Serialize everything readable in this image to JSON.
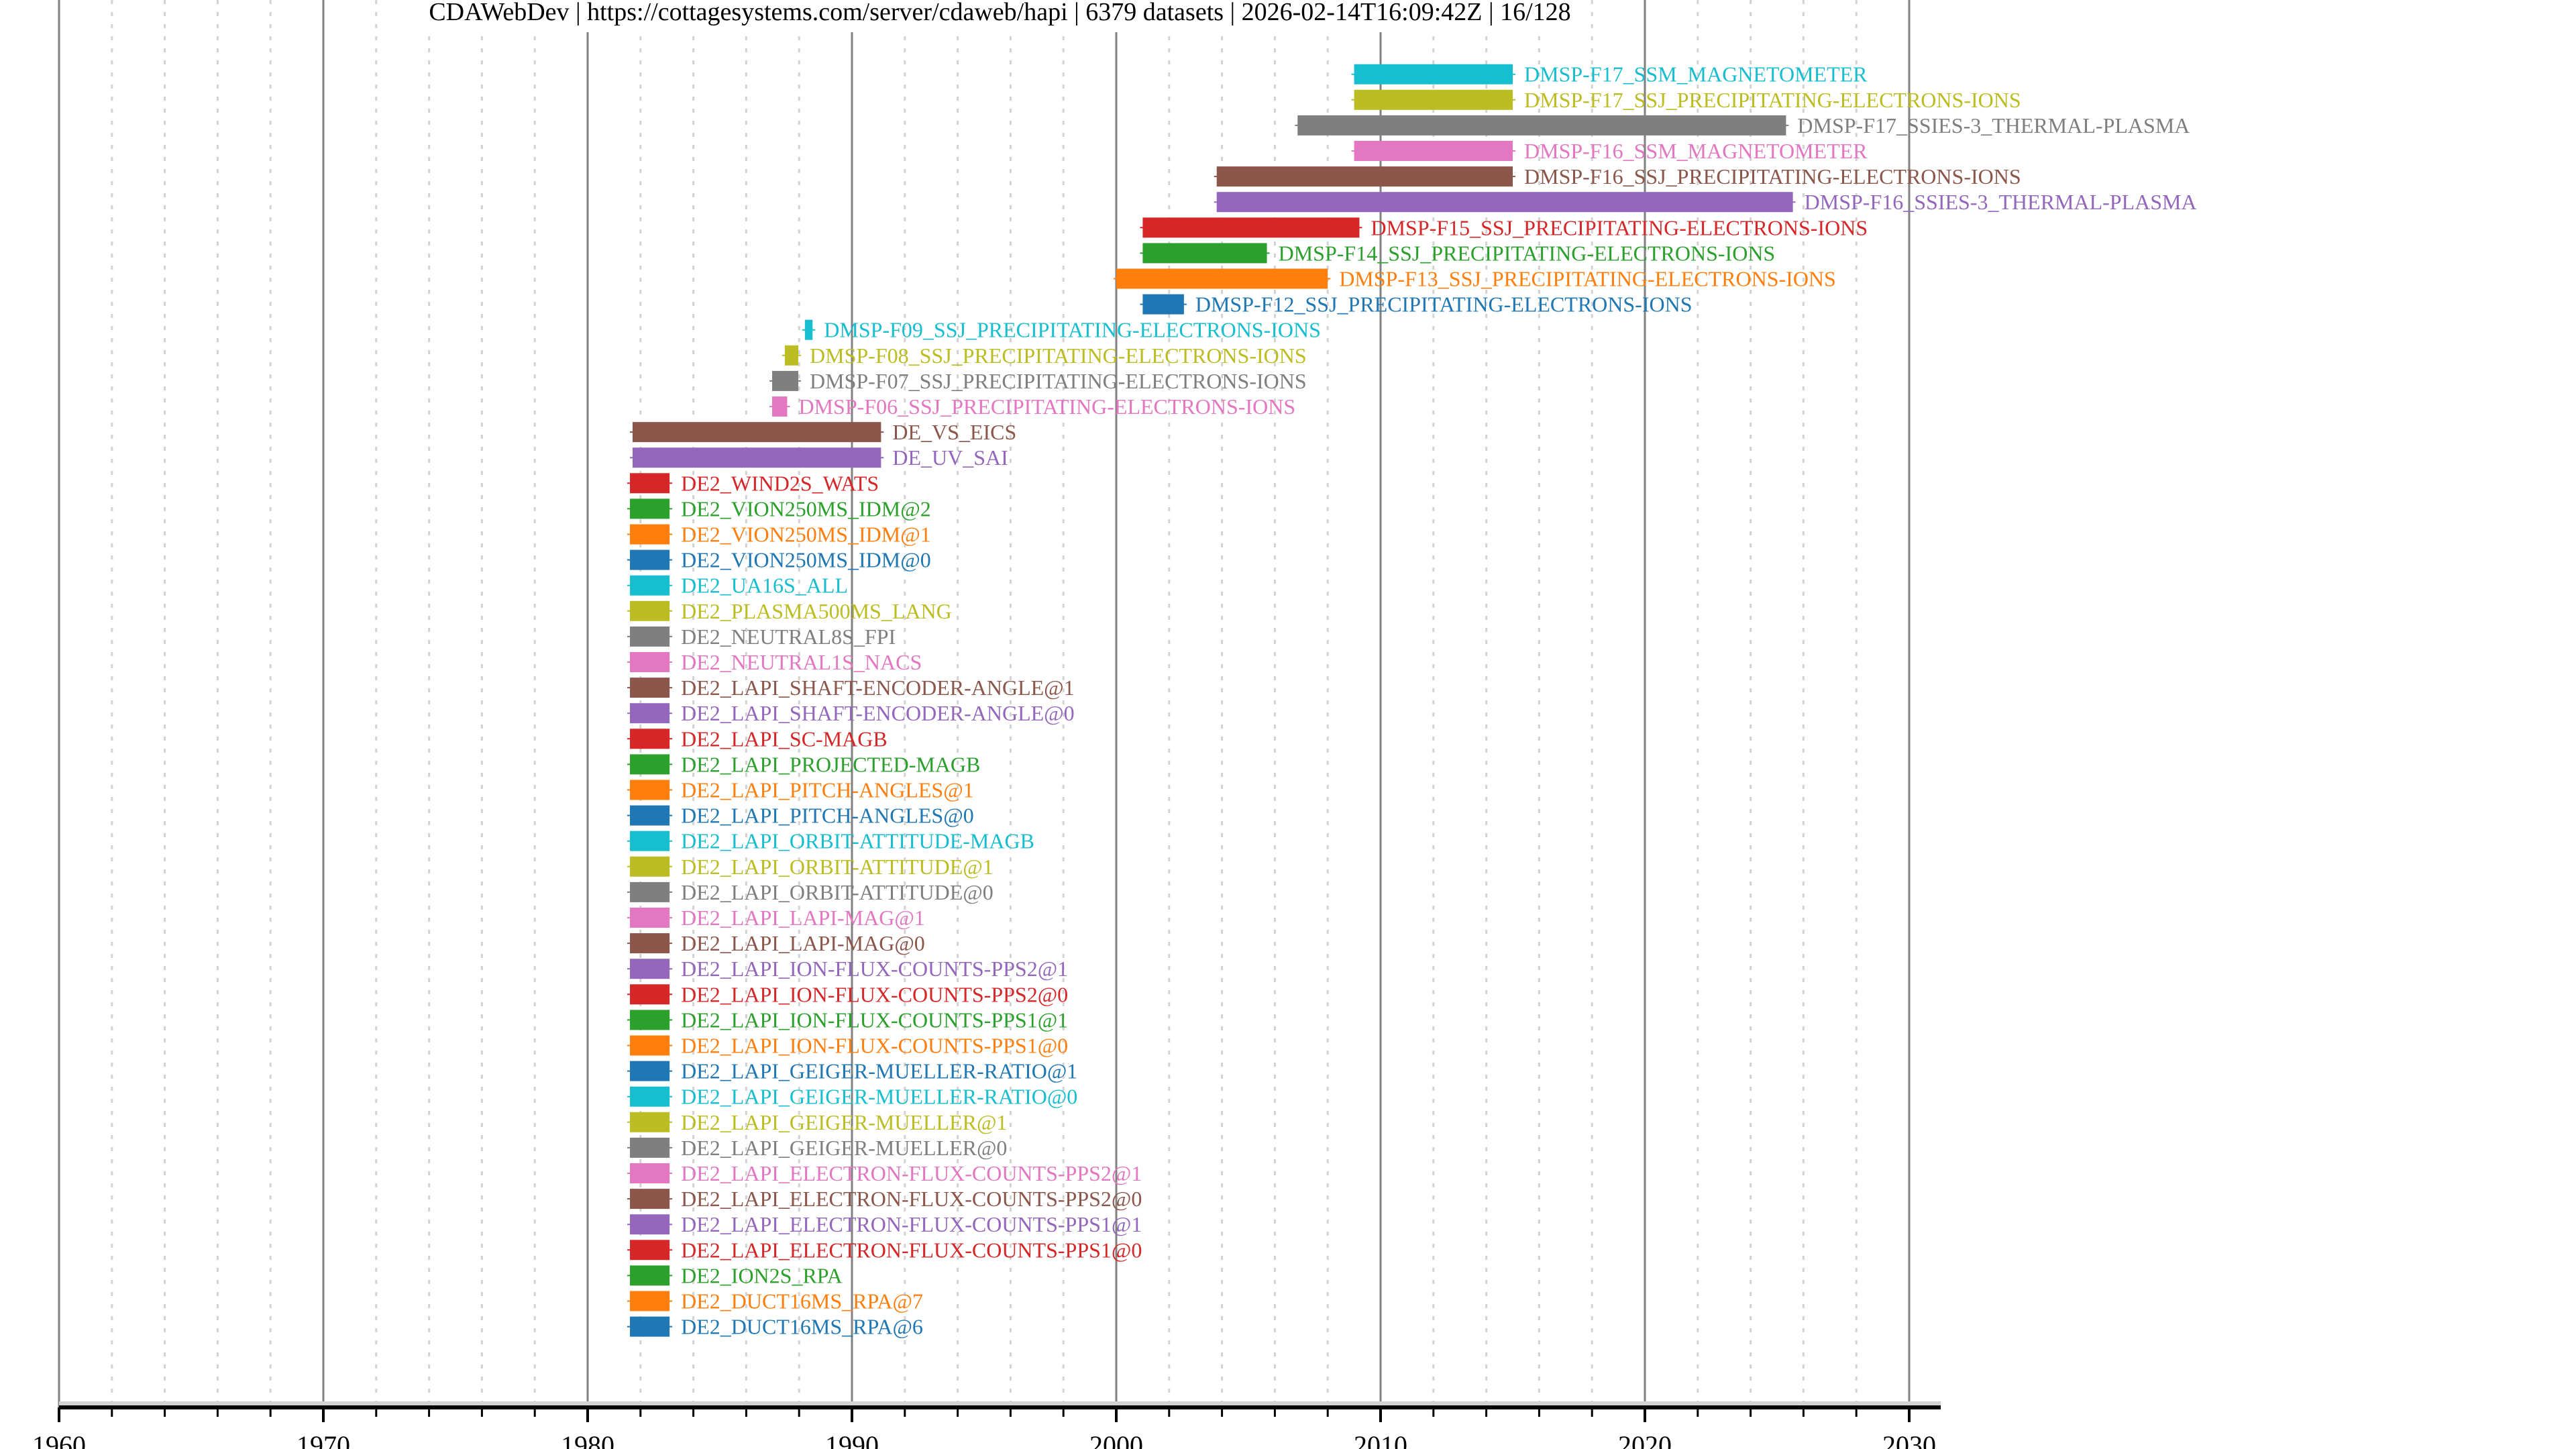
{
  "chart_data": {
    "type": "timeline",
    "title_parts": [
      "CDAWebDev",
      "https://cottagesystems.com/server/cdaweb/hapi",
      "6379 datasets",
      "2026-02-14T16:09:42Z",
      "16/128"
    ],
    "xlabel": "",
    "ylabel": "",
    "xlim": [
      1960,
      2031.2
    ],
    "x_ticks": [
      1960,
      1970,
      1980,
      1990,
      2000,
      2010,
      2020,
      2030
    ],
    "x_tick_labels": [
      "1960",
      "1970",
      "1980",
      "1990",
      "2000",
      "2010",
      "2020",
      "2030"
    ],
    "minor_tick_step_years": 2,
    "grid": true,
    "legend": "none",
    "palette": [
      "#1f77b4",
      "#ff7f0e",
      "#2ca02c",
      "#d62728",
      "#9467bd",
      "#8c564b",
      "#e377c2",
      "#7f7f7f",
      "#bcbd22",
      "#17becf"
    ],
    "series": [
      {
        "name": "DMSP-F17_SSM_MAGNETOMETER",
        "start": 2009.0,
        "end": 2015.0,
        "color": "#17becf"
      },
      {
        "name": "DMSP-F17_SSJ_PRECIPITATING-ELECTRONS-IONS",
        "start": 2009.0,
        "end": 2015.0,
        "color": "#bcbd22"
      },
      {
        "name": "DMSP-F17_SSIES-3_THERMAL-PLASMA",
        "start": 2006.86,
        "end": 2025.34,
        "color": "#7f7f7f"
      },
      {
        "name": "DMSP-F16_SSM_MAGNETOMETER",
        "start": 2009.0,
        "end": 2015.0,
        "color": "#e377c2"
      },
      {
        "name": "DMSP-F16_SSJ_PRECIPITATING-ELECTRONS-IONS",
        "start": 2003.8,
        "end": 2015.0,
        "color": "#8c564b"
      },
      {
        "name": "DMSP-F16_SSIES-3_THERMAL-PLASMA",
        "start": 2003.8,
        "end": 2025.6,
        "color": "#9467bd"
      },
      {
        "name": "DMSP-F15_SSJ_PRECIPITATING-ELECTRONS-IONS",
        "start": 2001.0,
        "end": 2009.2,
        "color": "#d62728"
      },
      {
        "name": "DMSP-F14_SSJ_PRECIPITATING-ELECTRONS-IONS",
        "start": 2001.0,
        "end": 2005.7,
        "color": "#2ca02c"
      },
      {
        "name": "DMSP-F13_SSJ_PRECIPITATING-ELECTRONS-IONS",
        "start": 2000.0,
        "end": 2008.0,
        "color": "#ff7f0e"
      },
      {
        "name": "DMSP-F12_SSJ_PRECIPITATING-ELECTRONS-IONS",
        "start": 2001.0,
        "end": 2002.56,
        "color": "#1f77b4"
      },
      {
        "name": "DMSP-F09_SSJ_PRECIPITATING-ELECTRONS-IONS",
        "start": 1988.22,
        "end": 1988.51,
        "color": "#17becf"
      },
      {
        "name": "DMSP-F08_SSJ_PRECIPITATING-ELECTRONS-IONS",
        "start": 1987.46,
        "end": 1987.97,
        "color": "#bcbd22"
      },
      {
        "name": "DMSP-F07_SSJ_PRECIPITATING-ELECTRONS-IONS",
        "start": 1986.98,
        "end": 1987.97,
        "color": "#7f7f7f"
      },
      {
        "name": "DMSP-F06_SSJ_PRECIPITATING-ELECTRONS-IONS",
        "start": 1986.98,
        "end": 1987.55,
        "color": "#e377c2"
      },
      {
        "name": "DE_VS_EICS",
        "start": 1981.7,
        "end": 1991.1,
        "color": "#8c564b"
      },
      {
        "name": "DE_UV_SAI",
        "start": 1981.7,
        "end": 1991.1,
        "color": "#9467bd"
      },
      {
        "name": "DE2_WIND2S_WATS",
        "start": 1981.6,
        "end": 1983.1,
        "color": "#d62728"
      },
      {
        "name": "DE2_VION250MS_IDM@2",
        "start": 1981.6,
        "end": 1983.1,
        "color": "#2ca02c"
      },
      {
        "name": "DE2_VION250MS_IDM@1",
        "start": 1981.6,
        "end": 1983.1,
        "color": "#ff7f0e"
      },
      {
        "name": "DE2_VION250MS_IDM@0",
        "start": 1981.6,
        "end": 1983.1,
        "color": "#1f77b4"
      },
      {
        "name": "DE2_UA16S_ALL",
        "start": 1981.6,
        "end": 1983.1,
        "color": "#17becf"
      },
      {
        "name": "DE2_PLASMA500MS_LANG",
        "start": 1981.6,
        "end": 1983.1,
        "color": "#bcbd22"
      },
      {
        "name": "DE2_NEUTRAL8S_FPI",
        "start": 1981.6,
        "end": 1983.1,
        "color": "#7f7f7f"
      },
      {
        "name": "DE2_NEUTRAL1S_NACS",
        "start": 1981.6,
        "end": 1983.1,
        "color": "#e377c2"
      },
      {
        "name": "DE2_LAPI_SHAFT-ENCODER-ANGLE@1",
        "start": 1981.6,
        "end": 1983.1,
        "color": "#8c564b"
      },
      {
        "name": "DE2_LAPI_SHAFT-ENCODER-ANGLE@0",
        "start": 1981.6,
        "end": 1983.1,
        "color": "#9467bd"
      },
      {
        "name": "DE2_LAPI_SC-MAGB",
        "start": 1981.6,
        "end": 1983.1,
        "color": "#d62728"
      },
      {
        "name": "DE2_LAPI_PROJECTED-MAGB",
        "start": 1981.6,
        "end": 1983.1,
        "color": "#2ca02c"
      },
      {
        "name": "DE2_LAPI_PITCH-ANGLES@1",
        "start": 1981.6,
        "end": 1983.1,
        "color": "#ff7f0e"
      },
      {
        "name": "DE2_LAPI_PITCH-ANGLES@0",
        "start": 1981.6,
        "end": 1983.1,
        "color": "#1f77b4"
      },
      {
        "name": "DE2_LAPI_ORBIT-ATTITUDE-MAGB",
        "start": 1981.6,
        "end": 1983.1,
        "color": "#17becf"
      },
      {
        "name": "DE2_LAPI_ORBIT-ATTITUDE@1",
        "start": 1981.6,
        "end": 1983.1,
        "color": "#bcbd22"
      },
      {
        "name": "DE2_LAPI_ORBIT-ATTITUDE@0",
        "start": 1981.6,
        "end": 1983.1,
        "color": "#7f7f7f"
      },
      {
        "name": "DE2_LAPI_LAPI-MAG@1",
        "start": 1981.6,
        "end": 1983.1,
        "color": "#e377c2"
      },
      {
        "name": "DE2_LAPI_LAPI-MAG@0",
        "start": 1981.6,
        "end": 1983.1,
        "color": "#8c564b"
      },
      {
        "name": "DE2_LAPI_ION-FLUX-COUNTS-PPS2@1",
        "start": 1981.6,
        "end": 1983.1,
        "color": "#9467bd"
      },
      {
        "name": "DE2_LAPI_ION-FLUX-COUNTS-PPS2@0",
        "start": 1981.6,
        "end": 1983.1,
        "color": "#d62728"
      },
      {
        "name": "DE2_LAPI_ION-FLUX-COUNTS-PPS1@1",
        "start": 1981.6,
        "end": 1983.1,
        "color": "#2ca02c"
      },
      {
        "name": "DE2_LAPI_ION-FLUX-COUNTS-PPS1@0",
        "start": 1981.6,
        "end": 1983.1,
        "color": "#ff7f0e"
      },
      {
        "name": "DE2_LAPI_GEIGER-MUELLER-RATIO@1",
        "start": 1981.6,
        "end": 1983.1,
        "color": "#1f77b4"
      },
      {
        "name": "DE2_LAPI_GEIGER-MUELLER-RATIO@0",
        "start": 1981.6,
        "end": 1983.1,
        "color": "#17becf"
      },
      {
        "name": "DE2_LAPI_GEIGER-MUELLER@1",
        "start": 1981.6,
        "end": 1983.1,
        "color": "#bcbd22"
      },
      {
        "name": "DE2_LAPI_GEIGER-MUELLER@0",
        "start": 1981.6,
        "end": 1983.1,
        "color": "#7f7f7f"
      },
      {
        "name": "DE2_LAPI_ELECTRON-FLUX-COUNTS-PPS2@1",
        "start": 1981.6,
        "end": 1983.1,
        "color": "#e377c2"
      },
      {
        "name": "DE2_LAPI_ELECTRON-FLUX-COUNTS-PPS2@0",
        "start": 1981.6,
        "end": 1983.1,
        "color": "#8c564b"
      },
      {
        "name": "DE2_LAPI_ELECTRON-FLUX-COUNTS-PPS1@1",
        "start": 1981.6,
        "end": 1983.1,
        "color": "#9467bd"
      },
      {
        "name": "DE2_LAPI_ELECTRON-FLUX-COUNTS-PPS1@0",
        "start": 1981.6,
        "end": 1983.1,
        "color": "#d62728"
      },
      {
        "name": "DE2_ION2S_RPA",
        "start": 1981.6,
        "end": 1983.1,
        "color": "#2ca02c"
      },
      {
        "name": "DE2_DUCT16MS_RPA@7",
        "start": 1981.6,
        "end": 1983.1,
        "color": "#ff7f0e"
      },
      {
        "name": "DE2_DUCT16MS_RPA@6",
        "start": 1981.6,
        "end": 1983.1,
        "color": "#1f77b4"
      }
    ]
  }
}
